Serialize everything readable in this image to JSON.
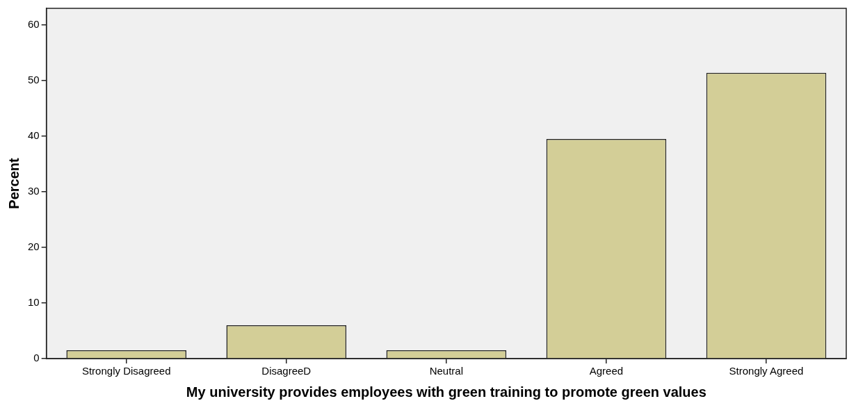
{
  "chart_data": {
    "type": "bar",
    "xlabel": "My university provides employees with green training to promote green values",
    "ylabel": "Percent",
    "categories": [
      "Strongly Disagreed",
      "DisagreeD",
      "Neutral",
      "Agreed",
      "Strongly Agreed"
    ],
    "values": [
      1.5,
      6.0,
      1.5,
      39.5,
      51.4
    ],
    "color": "#d3ce97",
    "ylim": [
      0,
      63
    ],
    "yticks": [
      0,
      10,
      20,
      30,
      40,
      50,
      60
    ],
    "grid": false
  }
}
